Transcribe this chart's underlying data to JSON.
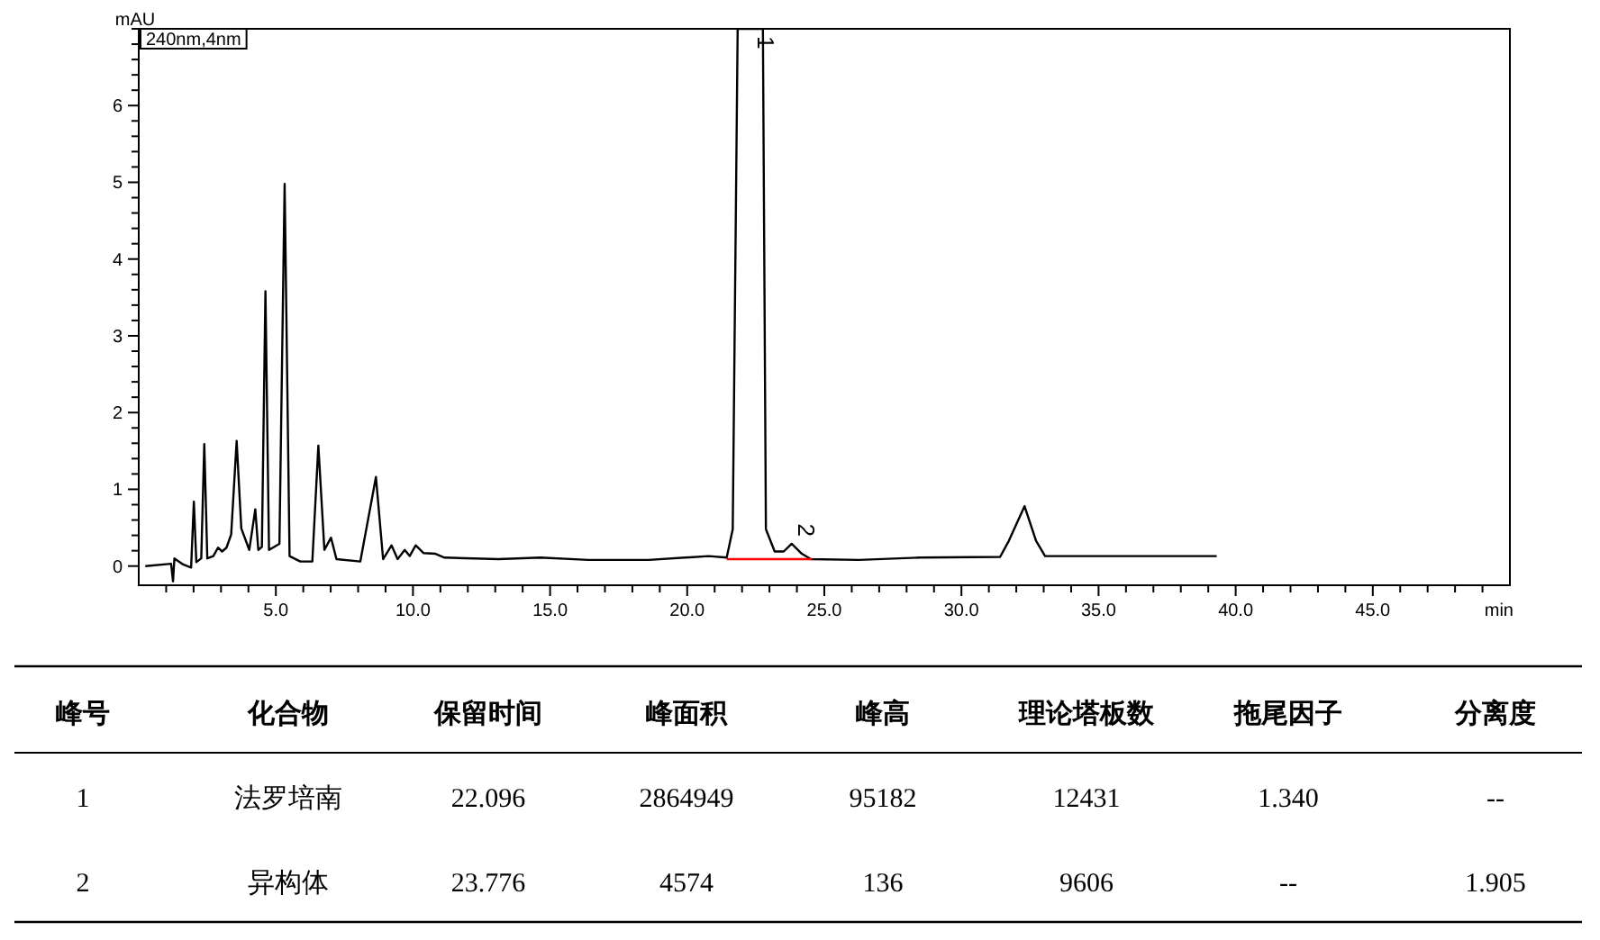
{
  "chart_data": {
    "type": "line",
    "xlabel": "min",
    "ylabel": "mAU",
    "xlim": [
      0,
      50
    ],
    "ylim": [
      -0.25,
      7
    ],
    "xticks": [
      {
        "value": 1,
        "label": null
      },
      {
        "value": 2,
        "label": null
      },
      {
        "value": 3,
        "label": null
      },
      {
        "value": 4,
        "label": null
      },
      {
        "value": 5,
        "label": "5.0"
      },
      {
        "value": 6,
        "label": null
      },
      {
        "value": 7,
        "label": null
      },
      {
        "value": 8,
        "label": null
      },
      {
        "value": 9,
        "label": null
      },
      {
        "value": 10,
        "label": "10.0"
      },
      {
        "value": 11,
        "label": null
      },
      {
        "value": 12,
        "label": null
      },
      {
        "value": 13,
        "label": null
      },
      {
        "value": 14,
        "label": null
      },
      {
        "value": 15,
        "label": "15.0"
      },
      {
        "value": 16,
        "label": null
      },
      {
        "value": 17,
        "label": null
      },
      {
        "value": 18,
        "label": null
      },
      {
        "value": 19,
        "label": null
      },
      {
        "value": 20,
        "label": "20.0"
      },
      {
        "value": 21,
        "label": null
      },
      {
        "value": 22,
        "label": null
      },
      {
        "value": 23,
        "label": null
      },
      {
        "value": 24,
        "label": null
      },
      {
        "value": 25,
        "label": "25.0"
      },
      {
        "value": 26,
        "label": null
      },
      {
        "value": 27,
        "label": null
      },
      {
        "value": 28,
        "label": null
      },
      {
        "value": 29,
        "label": null
      },
      {
        "value": 30,
        "label": "30.0"
      },
      {
        "value": 31,
        "label": null
      },
      {
        "value": 32,
        "label": null
      },
      {
        "value": 33,
        "label": null
      },
      {
        "value": 34,
        "label": null
      },
      {
        "value": 35,
        "label": "35.0"
      },
      {
        "value": 36,
        "label": null
      },
      {
        "value": 37,
        "label": null
      },
      {
        "value": 38,
        "label": null
      },
      {
        "value": 39,
        "label": null
      },
      {
        "value": 40,
        "label": "40.0"
      },
      {
        "value": 41,
        "label": null
      },
      {
        "value": 42,
        "label": null
      },
      {
        "value": 43,
        "label": null
      },
      {
        "value": 44,
        "label": null
      },
      {
        "value": 45,
        "label": "45.0"
      },
      {
        "value": 46,
        "label": null
      },
      {
        "value": 47,
        "label": null
      },
      {
        "value": 48,
        "label": null
      },
      {
        "value": 49,
        "label": null
      }
    ],
    "yticks": [
      0,
      {
        "value": 0.2,
        "label": null
      },
      {
        "value": 0.4,
        "label": null
      },
      {
        "value": 0.6,
        "label": null
      },
      {
        "value": 0.8,
        "label": null
      },
      1,
      {
        "value": 1.2,
        "label": null
      },
      {
        "value": 1.4,
        "label": null
      },
      {
        "value": 1.6,
        "label": null
      },
      {
        "value": 1.8,
        "label": null
      },
      2,
      {
        "value": 2.2,
        "label": null
      },
      {
        "value": 2.4,
        "label": null
      },
      {
        "value": 2.6,
        "label": null
      },
      {
        "value": 2.8,
        "label": null
      },
      3,
      {
        "value": 3.2,
        "label": null
      },
      {
        "value": 3.4,
        "label": null
      },
      {
        "value": 3.6,
        "label": null
      },
      {
        "value": 3.8,
        "label": null
      },
      4,
      {
        "value": 4.2,
        "label": null
      },
      {
        "value": 4.4,
        "label": null
      },
      {
        "value": 4.6,
        "label": null
      },
      {
        "value": 4.8,
        "label": null
      },
      5,
      {
        "value": 5.2,
        "label": null
      },
      {
        "value": 5.4,
        "label": null
      },
      {
        "value": 5.6,
        "label": null
      },
      {
        "value": 5.8,
        "label": null
      },
      6,
      {
        "value": 6.2,
        "label": null
      },
      {
        "value": 6.4,
        "label": null
      },
      {
        "value": 6.6,
        "label": null
      },
      {
        "value": 6.8,
        "label": null
      },
      {
        "value": 7,
        "label": null
      }
    ],
    "series": [
      {
        "color": "#000000",
        "x": [
          0.24,
          1.18,
          1.25,
          1.3,
          1.62,
          1.91,
          2.01,
          2.1,
          2.28,
          2.39,
          2.5,
          2.72,
          2.89,
          3.04,
          3.2,
          3.37,
          3.57,
          3.74,
          4.03,
          4.25,
          4.36,
          4.49,
          4.62,
          4.75,
          5.13,
          5.32,
          5.5,
          5.89,
          6.33,
          6.55,
          6.77,
          7.01,
          7.21,
          8.08,
          8.65,
          8.91,
          9.22,
          9.44,
          9.7,
          9.88,
          10.1,
          10.38,
          10.82,
          11.15,
          13.12,
          14.65,
          16.4,
          18.6,
          20.78,
          21.44,
          21.66,
          21.84,
          22.76,
          22.87,
          23.19,
          23.52,
          23.81,
          24.18,
          24.51,
          26.26,
          28.45,
          31.41,
          31.73,
          32.3,
          32.72,
          33.05,
          36.1,
          39.31
        ],
        "values": [
          0,
          0.03,
          -0.2,
          0.1,
          0.02,
          -0.02,
          0.84,
          0.05,
          0.1,
          1.59,
          0.1,
          0.13,
          0.24,
          0.19,
          0.24,
          0.41,
          1.63,
          0.49,
          0.21,
          0.74,
          0.21,
          0.25,
          3.58,
          0.21,
          0.29,
          4.98,
          0.13,
          0.06,
          0.06,
          1.57,
          0.21,
          0.37,
          0.09,
          0.06,
          1.16,
          0.09,
          0.27,
          0.09,
          0.21,
          0.13,
          0.27,
          0.17,
          0.16,
          0.11,
          0.09,
          0.11,
          0.08,
          0.08,
          0.13,
          0.11,
          0.48,
          7,
          7,
          0.48,
          0.19,
          0.19,
          0.29,
          0.16,
          0.09,
          0.08,
          0.11,
          0.12,
          0.33,
          0.78,
          0.33,
          0.13,
          0.13,
          0.13
        ]
      },
      {
        "color": "#ff0000",
        "x": [
          21.44,
          24.55
        ],
        "values": [
          0.09,
          0.09
        ]
      }
    ],
    "annotations": [
      "240nm,4nm",
      {
        "text": "1",
        "x": 22.3,
        "y": 7
      },
      {
        "text": "2",
        "x": 23.8,
        "y": 0.29
      },
      "峰号",
      "化合物",
      "保留时间",
      "峰面积",
      "峰高",
      "理论塔板数",
      "拖尾因子",
      "分离度",
      "1",
      "法罗培南",
      "22.096",
      "2864949",
      "95182",
      "12431",
      "1.340",
      "--",
      "2",
      "异构体",
      "23.776",
      "4574",
      "136",
      "9606",
      "--",
      "1.905"
    ]
  }
}
